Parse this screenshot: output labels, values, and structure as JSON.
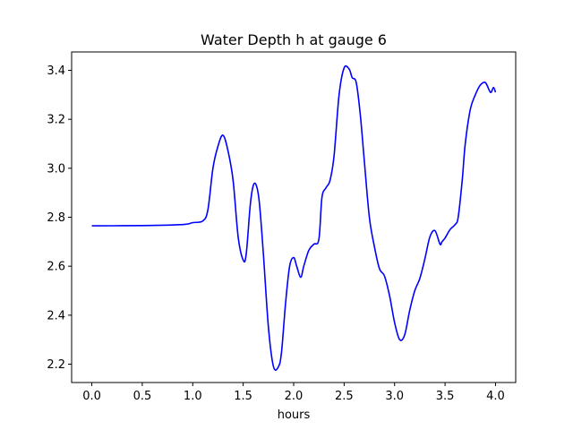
{
  "chart_data": {
    "type": "line",
    "title": "Water Depth h at gauge 6",
    "xlabel": "hours",
    "ylabel": "",
    "xlim": [
      -0.2,
      4.2
    ],
    "ylim": [
      2.125,
      3.475
    ],
    "xticks": [
      0.0,
      0.5,
      1.0,
      1.5,
      2.0,
      2.5,
      3.0,
      3.5,
      4.0
    ],
    "xtick_labels": [
      "0.0",
      "0.5",
      "1.0",
      "1.5",
      "2.0",
      "2.5",
      "3.0",
      "3.5",
      "4.0"
    ],
    "yticks": [
      2.2,
      2.4,
      2.6,
      2.8,
      3.0,
      3.2,
      3.4
    ],
    "ytick_labels": [
      "2.2",
      "2.4",
      "2.6",
      "2.8",
      "3.0",
      "3.2",
      "3.4"
    ],
    "grid": false,
    "legend": "none",
    "series": [
      {
        "color": "#0000ff",
        "x": [
          0.0,
          0.5,
          0.9,
          1.0,
          1.1,
          1.15,
          1.2,
          1.25,
          1.3,
          1.35,
          1.4,
          1.45,
          1.5,
          1.53,
          1.57,
          1.6,
          1.63,
          1.66,
          1.7,
          1.75,
          1.8,
          1.85,
          1.88,
          1.92,
          1.96,
          2.0,
          2.03,
          2.07,
          2.1,
          2.15,
          2.2,
          2.25,
          2.28,
          2.32,
          2.36,
          2.4,
          2.45,
          2.5,
          2.55,
          2.58,
          2.62,
          2.66,
          2.7,
          2.75,
          2.8,
          2.85,
          2.9,
          2.95,
          3.0,
          3.05,
          3.1,
          3.15,
          3.2,
          3.25,
          3.3,
          3.35,
          3.4,
          3.45,
          3.47,
          3.5,
          3.55,
          3.6,
          3.63,
          3.67,
          3.7,
          3.75,
          3.8,
          3.85,
          3.9,
          3.95,
          3.98,
          4.0
        ],
        "y": [
          2.765,
          2.766,
          2.77,
          2.778,
          2.785,
          2.83,
          3.0,
          3.09,
          3.135,
          3.07,
          2.95,
          2.72,
          2.625,
          2.65,
          2.85,
          2.93,
          2.93,
          2.86,
          2.65,
          2.35,
          2.19,
          2.19,
          2.25,
          2.45,
          2.6,
          2.635,
          2.6,
          2.555,
          2.6,
          2.665,
          2.69,
          2.71,
          2.88,
          2.92,
          2.95,
          3.05,
          3.3,
          3.41,
          3.405,
          3.37,
          3.35,
          3.22,
          3.03,
          2.8,
          2.68,
          2.59,
          2.56,
          2.48,
          2.37,
          2.3,
          2.32,
          2.42,
          2.5,
          2.55,
          2.63,
          2.72,
          2.745,
          2.69,
          2.7,
          2.715,
          2.75,
          2.77,
          2.8,
          2.95,
          3.1,
          3.24,
          3.3,
          3.34,
          3.35,
          3.31,
          3.33,
          3.31
        ]
      }
    ]
  }
}
